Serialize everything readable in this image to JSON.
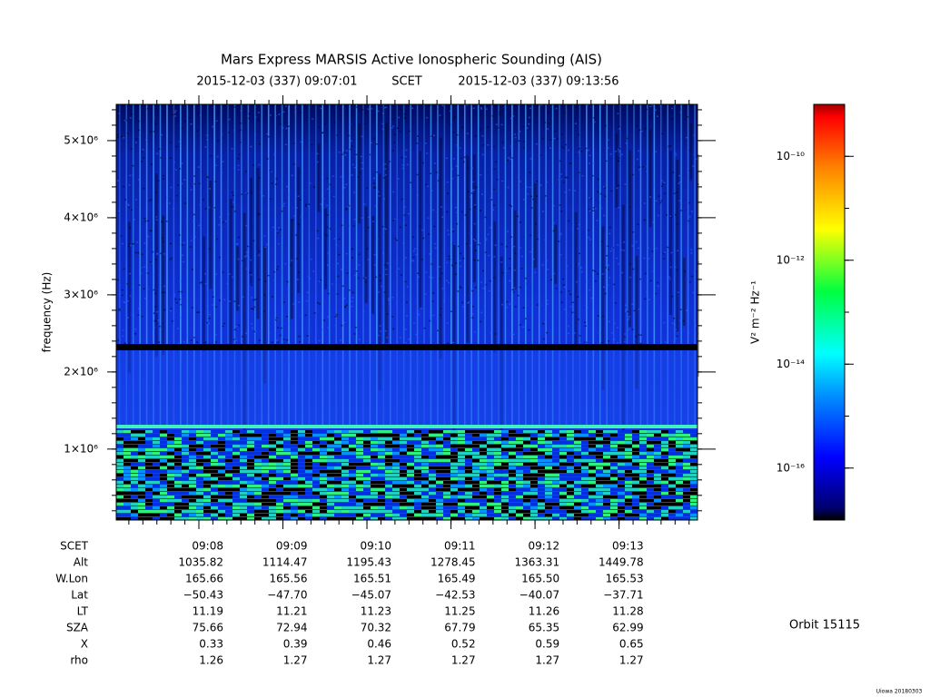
{
  "chart_data": {
    "type": "spectrogram",
    "title": "Mars Express MARSIS Active Ionospheric Sounding (AIS)",
    "start_time": "2015-12-03 (337) 09:07:01",
    "time_label": "SCET",
    "end_time": "2015-12-03 (337) 09:13:56",
    "ylabel": "frequency (Hz)",
    "ylim": [
      80000,
      5470000
    ],
    "yticks": [
      {
        "value": 1000000,
        "label": "1×10⁶"
      },
      {
        "value": 2000000,
        "label": "2×10⁶"
      },
      {
        "value": 3000000,
        "label": "3×10⁶"
      },
      {
        "value": 4000000,
        "label": "4×10⁶"
      },
      {
        "value": 5000000,
        "label": "5×10⁶"
      }
    ],
    "xlabel": "SCET",
    "xticks": [
      "09:08",
      "09:09",
      "09:10",
      "09:11",
      "09:12",
      "09:13"
    ],
    "ephemeris": [
      {
        "label": "Alt",
        "values": [
          "1035.82",
          "1114.47",
          "1195.43",
          "1278.45",
          "1363.31",
          "1449.78"
        ]
      },
      {
        "label": "W.Lon",
        "values": [
          "165.66",
          "165.56",
          "165.51",
          "165.49",
          "165.50",
          "165.53"
        ]
      },
      {
        "label": "Lat",
        "values": [
          "−50.43",
          "−47.70",
          "−45.07",
          "−42.53",
          "−40.07",
          "−37.71"
        ]
      },
      {
        "label": "LT",
        "values": [
          "11.19",
          "11.21",
          "11.23",
          "11.25",
          "11.26",
          "11.28"
        ]
      },
      {
        "label": "SZA",
        "values": [
          "75.66",
          "72.94",
          "70.32",
          "67.79",
          "65.35",
          "62.99"
        ]
      },
      {
        "label": "X",
        "values": [
          "0.33",
          "0.39",
          "0.46",
          "0.52",
          "0.59",
          "0.65"
        ]
      },
      {
        "label": "rho",
        "values": [
          "1.26",
          "1.27",
          "1.27",
          "1.27",
          "1.27",
          "1.27"
        ]
      }
    ],
    "colorbar": {
      "label": "V² m⁻² Hz⁻¹",
      "log": true,
      "clim": [
        1e-17,
        1e-09
      ],
      "ticks": [
        {
          "value": 1e-16,
          "label": "10⁻¹⁶"
        },
        {
          "value": 1e-14,
          "label": "10⁻¹⁴"
        },
        {
          "value": 1e-12,
          "label": "10⁻¹²"
        },
        {
          "value": 1e-10,
          "label": "10⁻¹⁰"
        }
      ]
    },
    "orbit": "Orbit 15115",
    "credit": "Uiowa 20180303"
  }
}
